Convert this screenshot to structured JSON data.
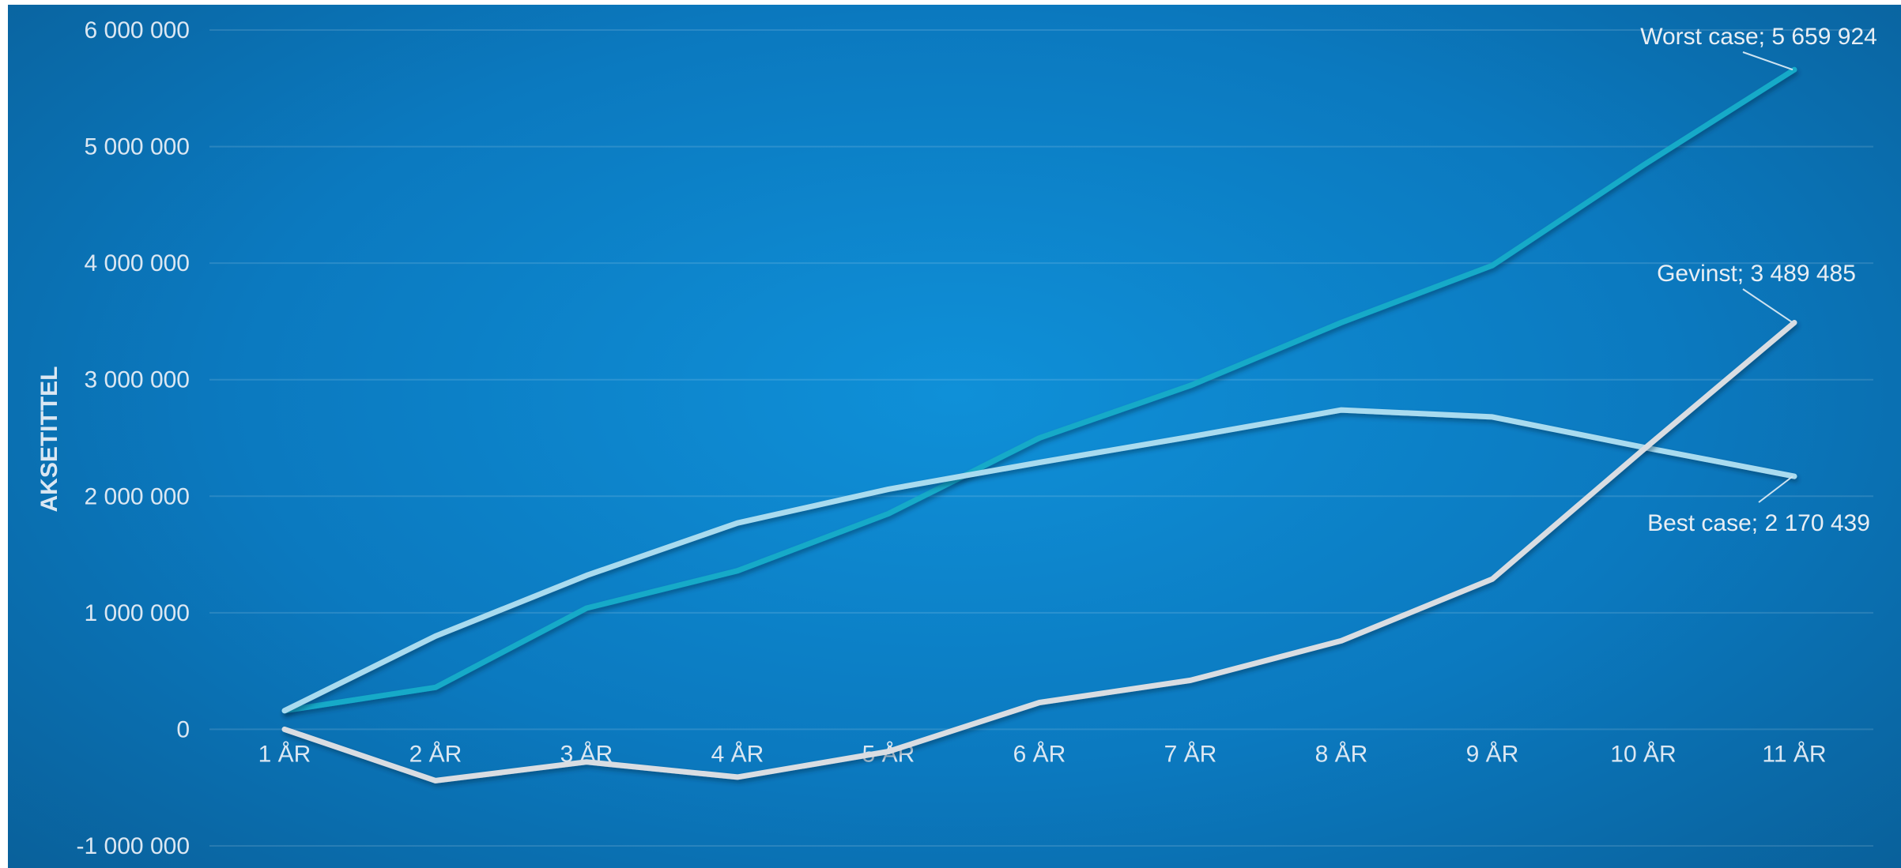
{
  "chart_data": {
    "type": "line",
    "title": "",
    "xlabel": "",
    "ylabel": "AKSETITTEL",
    "categories": [
      "1 ÅR",
      "2 ÅR",
      "3 ÅR",
      "4 ÅR",
      "5 ÅR",
      "6 ÅR",
      "7 ÅR",
      "8 ÅR",
      "9 ÅR",
      "10 ÅR",
      "11 ÅR"
    ],
    "ylim": [
      -1000000,
      6000000
    ],
    "yticks": [
      -1000000,
      0,
      1000000,
      2000000,
      3000000,
      4000000,
      5000000,
      6000000
    ],
    "ytick_labels": [
      "-1 000 000",
      "0",
      "1 000 000",
      "2 000 000",
      "3 000 000",
      "4 000 000",
      "5 000 000",
      "6 000 000"
    ],
    "grid": true,
    "legend": "none",
    "series": [
      {
        "name": "Worst case",
        "color": "#13aac8",
        "values": [
          160000,
          360000,
          1040000,
          1360000,
          1850000,
          2500000,
          2950000,
          3490000,
          3980000,
          4840000,
          5659924
        ],
        "end_label": "Worst case; 5 659 924"
      },
      {
        "name": "Best case",
        "color": "#a9dbef",
        "values": [
          160000,
          800000,
          1320000,
          1770000,
          2060000,
          2290000,
          2510000,
          2740000,
          2680000,
          2420000,
          2170439
        ],
        "end_label": "Best case; 2 170 439"
      },
      {
        "name": "Gevinst",
        "color": "#d9dde2",
        "values": [
          0,
          -440000,
          -280000,
          -410000,
          -190000,
          230000,
          420000,
          760000,
          1290000,
          2400000,
          3489485
        ],
        "end_label": "Gevinst; 3 489 485"
      }
    ]
  }
}
